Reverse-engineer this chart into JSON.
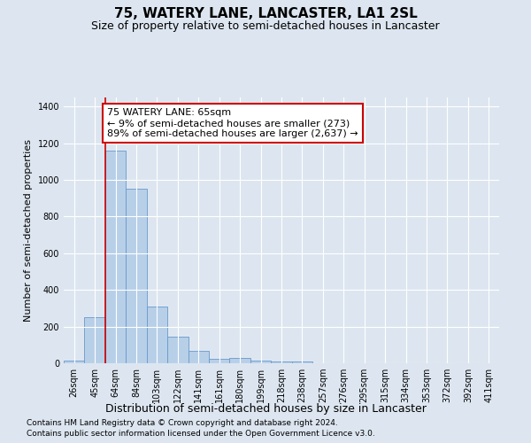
{
  "title": "75, WATERY LANE, LANCASTER, LA1 2SL",
  "subtitle": "Size of property relative to semi-detached houses in Lancaster",
  "xlabel": "Distribution of semi-detached houses by size in Lancaster",
  "ylabel": "Number of semi-detached properties",
  "categories": [
    "26sqm",
    "45sqm",
    "64sqm",
    "84sqm",
    "103sqm",
    "122sqm",
    "141sqm",
    "161sqm",
    "180sqm",
    "199sqm",
    "218sqm",
    "238sqm",
    "257sqm",
    "276sqm",
    "295sqm",
    "315sqm",
    "334sqm",
    "353sqm",
    "372sqm",
    "392sqm",
    "411sqm"
  ],
  "values": [
    15,
    250,
    1160,
    950,
    310,
    145,
    70,
    25,
    28,
    15,
    10,
    10,
    0,
    0,
    0,
    0,
    0,
    0,
    0,
    0,
    0
  ],
  "bar_color": "#b8cfe8",
  "bar_edge_color": "#6699cc",
  "bar_edge_width": 0.6,
  "vline_color": "#cc0000",
  "annotation_text": "75 WATERY LANE: 65sqm\n← 9% of semi-detached houses are smaller (273)\n89% of semi-detached houses are larger (2,637) →",
  "annotation_box_color": "#ffffff",
  "annotation_box_edge_color": "#cc0000",
  "ylim": [
    0,
    1450
  ],
  "yticks": [
    0,
    200,
    400,
    600,
    800,
    1000,
    1200,
    1400
  ],
  "background_color": "#dde6f0",
  "plot_bg_color": "#dde6f0",
  "footer_line1": "Contains HM Land Registry data © Crown copyright and database right 2024.",
  "footer_line2": "Contains public sector information licensed under the Open Government Licence v3.0.",
  "title_fontsize": 11,
  "subtitle_fontsize": 9,
  "xlabel_fontsize": 9,
  "ylabel_fontsize": 8,
  "tick_fontsize": 7,
  "annotation_fontsize": 8,
  "footer_fontsize": 6.5
}
